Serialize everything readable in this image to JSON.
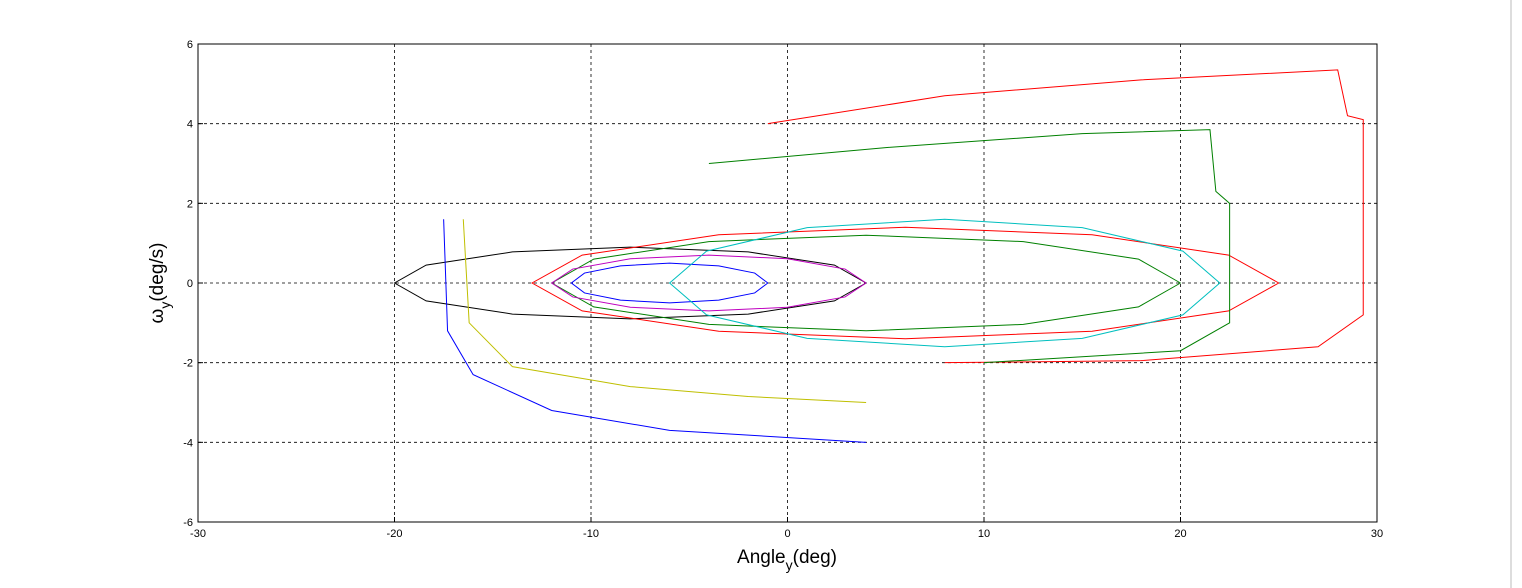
{
  "chart_data": {
    "type": "line",
    "xlabel": {
      "main": "Angle",
      "sub": "y",
      "unit": "(deg)"
    },
    "ylabel": {
      "main": "ω",
      "sub": "y",
      "unit": "(deg/s)"
    },
    "xlim": [
      -30,
      30
    ],
    "ylim": [
      -6,
      6
    ],
    "xticks": [
      -30,
      -20,
      -10,
      0,
      10,
      20,
      30
    ],
    "yticks": [
      -6,
      -4,
      -2,
      0,
      2,
      4,
      6
    ],
    "grid": true,
    "series": [
      {
        "color": "#000000",
        "x": [
          4,
          2.39,
          -2,
          -8,
          -14,
          -18.39,
          -20,
          -18.39,
          -14,
          -8,
          -2,
          2.39,
          4
        ],
        "values": [
          0,
          0.45,
          0.78,
          0.9,
          0.78,
          0.45,
          0,
          -0.45,
          -0.78,
          -0.9,
          -0.78,
          -0.45,
          0
        ]
      },
      {
        "color": "#ff0000",
        "x": [
          25,
          22.45,
          15.5,
          6,
          -3.5,
          -10.45,
          -13,
          -10.45,
          -3.5,
          6,
          15.5,
          22.45,
          25
        ],
        "values": [
          0,
          0.7,
          1.21,
          1.4,
          1.21,
          0.7,
          0,
          -0.7,
          -1.21,
          -1.4,
          -1.21,
          -0.7,
          0
        ]
      },
      {
        "color": "#0000ff",
        "x": [
          -1,
          -1.67,
          -3.5,
          -6,
          -8.5,
          -10.33,
          -11,
          -10.33,
          -8.5,
          -6,
          -3.5,
          -1.67,
          -1
        ],
        "values": [
          0,
          0.25,
          0.43,
          0.5,
          0.43,
          0.25,
          0,
          -0.25,
          -0.43,
          -0.5,
          -0.43,
          -0.25,
          0
        ]
      },
      {
        "color": "#008000",
        "x": [
          20,
          17.86,
          12,
          4,
          -4,
          -9.86,
          -12,
          -9.86,
          -4,
          4,
          12,
          17.86,
          20
        ],
        "values": [
          0,
          0.6,
          1.04,
          1.2,
          1.04,
          0.6,
          0,
          -0.6,
          -1.04,
          -1.2,
          -1.04,
          -0.6,
          0
        ]
      },
      {
        "color": "#bf00bf",
        "x": [
          4,
          2.93,
          0,
          -4,
          -8,
          -10.93,
          -12,
          -10.93,
          -8,
          -4,
          0,
          2.93,
          4
        ],
        "values": [
          0,
          0.35,
          0.61,
          0.7,
          0.61,
          0.35,
          0,
          -0.35,
          -0.61,
          -0.7,
          -0.61,
          -0.35,
          0
        ]
      },
      {
        "color": "#00bfbf",
        "x": [
          22,
          20.12,
          15,
          8,
          1,
          -4.12,
          -6,
          -4.12,
          1,
          8,
          15,
          20.12,
          22
        ],
        "values": [
          0,
          0.8,
          1.39,
          1.6,
          1.39,
          0.8,
          0,
          -0.8,
          -1.39,
          -1.6,
          -1.39,
          -0.8,
          0
        ]
      },
      {
        "color": "#ff0000",
        "x": [
          -1,
          8,
          18,
          28,
          28.5,
          29.3,
          29.3,
          27,
          18,
          8
        ],
        "values": [
          4,
          4.7,
          5.1,
          5.35,
          4.2,
          4.1,
          -0.8,
          -1.6,
          -1.95,
          -2
        ]
      },
      {
        "color": "#008000",
        "x": [
          -4,
          5,
          15,
          21.5,
          21.8,
          22.5,
          22.5,
          20,
          10
        ],
        "values": [
          3,
          3.4,
          3.75,
          3.85,
          2.3,
          2,
          -1,
          -1.7,
          -2
        ]
      },
      {
        "color": "#0000ff",
        "x": [
          -17.5,
          -17.3,
          -16,
          -12,
          -6,
          4
        ],
        "values": [
          1.6,
          -1.2,
          -2.3,
          -3.2,
          -3.7,
          -4
        ]
      },
      {
        "color": "#bfbf00",
        "x": [
          -16.5,
          -16.2,
          -14,
          -8,
          -2,
          4
        ],
        "values": [
          1.6,
          -1,
          -2.1,
          -2.6,
          -2.85,
          -3
        ]
      }
    ]
  }
}
